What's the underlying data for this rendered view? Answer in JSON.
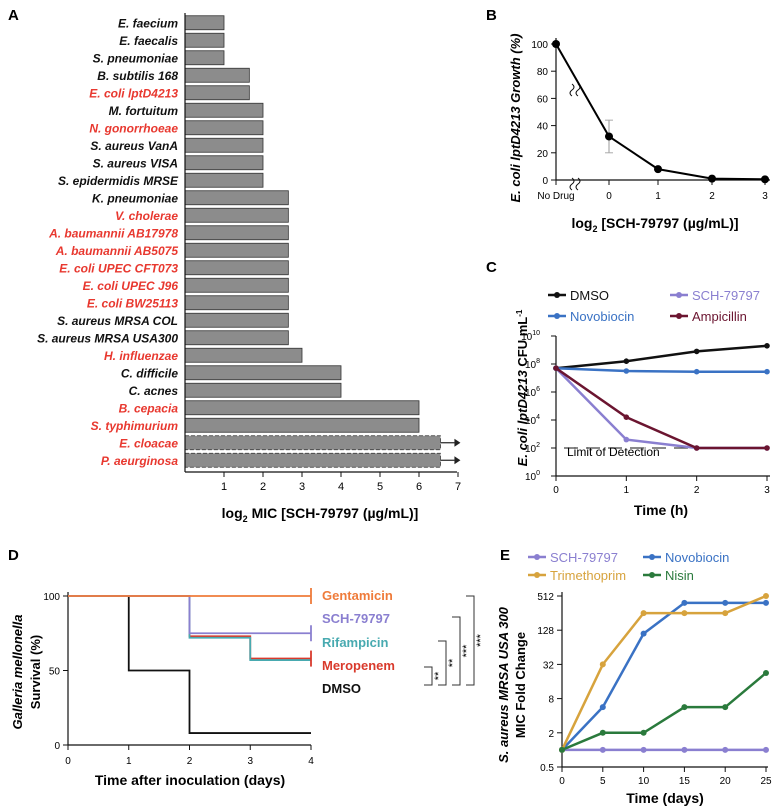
{
  "colors": {
    "red_label": "#e8382f",
    "black": "#111111",
    "bar_fill": "#8c8c8c",
    "sch": "#8a7fd0",
    "novobiocin": "#3a72c4",
    "ampicillin": "#6b1530",
    "dmso": "#111111",
    "gentamicin": "#ef7b3a",
    "rifampicin": "#48aab0",
    "meropenem": "#d93a2c",
    "trimethoprim": "#d7a33d",
    "nisin": "#2a7a3c"
  },
  "panels": {
    "a": {
      "letter": "A"
    },
    "b": {
      "letter": "B"
    },
    "c": {
      "letter": "C"
    },
    "d": {
      "letter": "D"
    },
    "e": {
      "letter": "E"
    }
  },
  "chart_data": [
    {
      "panel": "A",
      "type": "bar",
      "orientation": "horizontal",
      "xlabel_main": "log",
      "xlabel_sub": "2",
      "xlabel_rest": " MIC [SCH-79797  (µg/mL)]",
      "xlim": [
        0,
        7
      ],
      "xticks": [
        "1",
        "2",
        "3",
        "4",
        "5",
        "6",
        "7"
      ],
      "categories": [
        {
          "name": "E. faecium",
          "value": 1,
          "red": false
        },
        {
          "name": "E. faecalis",
          "value": 1,
          "red": false
        },
        {
          "name": "S. pneumoniae",
          "value": 1,
          "red": false
        },
        {
          "name": "B. subtilis 168",
          "value": 1.65,
          "red": false
        },
        {
          "name": "E. coli lptD4213",
          "value": 1.65,
          "red": true
        },
        {
          "name": "M. fortuitum",
          "value": 2,
          "red": false
        },
        {
          "name": "N. gonorrhoeae",
          "value": 2,
          "red": true
        },
        {
          "name": "S. aureus VanA",
          "value": 2,
          "red": false
        },
        {
          "name": "S. aureus VISA",
          "value": 2,
          "red": false
        },
        {
          "name": "S. epidermidis MRSE",
          "value": 2,
          "red": false
        },
        {
          "name": "K. pneumoniae",
          "value": 2.65,
          "red": false
        },
        {
          "name": "V. cholerae",
          "value": 2.65,
          "red": true
        },
        {
          "name": "A. baumannii AB17978",
          "value": 2.65,
          "red": true
        },
        {
          "name": "A. baumannii AB5075",
          "value": 2.65,
          "red": true
        },
        {
          "name": "E. coli UPEC CFT073",
          "value": 2.65,
          "red": true
        },
        {
          "name": "E. coli UPEC J96",
          "value": 2.65,
          "red": true
        },
        {
          "name": "E. coli BW25113",
          "value": 2.65,
          "red": true
        },
        {
          "name": "S. aureus MRSA COL",
          "value": 2.65,
          "red": false
        },
        {
          "name": "S. aureus MRSA USA300",
          "value": 2.65,
          "red": false
        },
        {
          "name": "H. influenzae",
          "value": 3,
          "red": true
        },
        {
          "name": "C. difficile",
          "value": 4,
          "red": false
        },
        {
          "name": "C. acnes",
          "value": 4,
          "red": false
        },
        {
          "name": "B. cepacia",
          "value": 6,
          "red": true
        },
        {
          "name": "S. typhimurium",
          "value": 6,
          "red": true
        },
        {
          "name": "E. cloacae",
          "value": 6.55,
          "red": true,
          "censored": true
        },
        {
          "name": "P. aeurginosa",
          "value": 6.55,
          "red": true,
          "censored": true
        }
      ]
    },
    {
      "panel": "B",
      "type": "line",
      "ylabel": "E. coli lptD4213 Growth (%)",
      "xlabel_main": "log",
      "xlabel_sub": "2",
      "xlabel_rest": " [SCH-79797  (µg/mL)]",
      "ylim": [
        0,
        100
      ],
      "yticks": [
        "0",
        "20",
        "40",
        "60",
        "80",
        "100"
      ],
      "xticks": [
        "No Drug",
        "0",
        "1",
        "2",
        "3"
      ],
      "x": [
        "No Drug",
        "0",
        "1",
        "2",
        "3"
      ],
      "values": [
        100,
        32,
        8,
        1,
        0.5
      ],
      "error_at_0": [
        20,
        44
      ]
    },
    {
      "panel": "C",
      "type": "line",
      "ylabel": "E. coli lptD4213 CFU mL",
      "ylabel_sup": "-1",
      "xlabel": "Time (h)",
      "x": [
        0,
        1,
        2,
        3
      ],
      "xticks": [
        "0",
        "1",
        "2",
        "3"
      ],
      "ylim_log10": [
        0,
        10
      ],
      "yticks": [
        "10",
        "10",
        "10",
        "10",
        "10",
        "10"
      ],
      "ytick_exps": [
        "0",
        "2",
        "4",
        "6",
        "8",
        "10"
      ],
      "limit_label": "Limit of Detection",
      "limit_log10": 2,
      "series": [
        {
          "name": "DMSO",
          "log10": [
            7.7,
            8.2,
            8.9,
            9.3
          ]
        },
        {
          "name": "SCH-79797",
          "log10": [
            7.7,
            2.6,
            2.0,
            2.0
          ]
        },
        {
          "name": "Novobiocin",
          "log10": [
            7.7,
            7.5,
            7.45,
            7.45
          ]
        },
        {
          "name": "Ampicillin",
          "log10": [
            7.7,
            4.2,
            2.0,
            2.0
          ]
        }
      ]
    },
    {
      "panel": "D",
      "type": "line",
      "ylabel_italic": "Galleria mellonella",
      "ylabel": "Survival (%)",
      "xlabel": "Time after inoculation (days)",
      "xlim": [
        0,
        4
      ],
      "xticks": [
        "0",
        "1",
        "2",
        "3",
        "4"
      ],
      "ylim": [
        0,
        100
      ],
      "yticks": [
        "0",
        "50",
        "100"
      ],
      "series": [
        {
          "name": "Gentamicin",
          "steps": [
            [
              0,
              100
            ],
            [
              4,
              100
            ]
          ]
        },
        {
          "name": "SCH-79797",
          "steps": [
            [
              0,
              100
            ],
            [
              2,
              100
            ],
            [
              2,
              75
            ],
            [
              4,
              75
            ]
          ]
        },
        {
          "name": "Rifampicin",
          "steps": [
            [
              0,
              100
            ],
            [
              2,
              100
            ],
            [
              2,
              72
            ],
            [
              3,
              72
            ],
            [
              3,
              57
            ],
            [
              4,
              57
            ]
          ]
        },
        {
          "name": "Meropenem",
          "steps": [
            [
              0,
              100
            ],
            [
              2,
              100
            ],
            [
              2,
              73
            ],
            [
              3,
              73
            ],
            [
              3,
              58
            ],
            [
              4,
              58
            ]
          ]
        },
        {
          "name": "DMSO",
          "steps": [
            [
              0,
              100
            ],
            [
              1,
              100
            ],
            [
              1,
              50
            ],
            [
              2,
              50
            ],
            [
              2,
              8
            ],
            [
              4,
              8
            ]
          ]
        }
      ],
      "significance": [
        "**",
        "**",
        "***",
        "***"
      ]
    },
    {
      "panel": "E",
      "type": "line",
      "ylabel_italic": "S. aureus MRSA USA 300",
      "ylabel": "MIC Fold Change",
      "xlabel": "Time (days)",
      "x": [
        0,
        5,
        10,
        15,
        20,
        25
      ],
      "xticks": [
        "0",
        "5",
        "10",
        "15",
        "20",
        "25"
      ],
      "yticks": [
        "0.5",
        "2",
        "8",
        "32",
        "128",
        "512"
      ],
      "ylim_log2": [
        -1,
        9
      ],
      "series": [
        {
          "name": "SCH-79797",
          "log2": [
            0,
            0,
            0,
            0,
            0,
            0
          ]
        },
        {
          "name": "Novobiocin",
          "log2": [
            0,
            2.5,
            6.8,
            8.6,
            8.6,
            8.6
          ]
        },
        {
          "name": "Trimethoprim",
          "log2": [
            0,
            5,
            8,
            8,
            8,
            9
          ]
        },
        {
          "name": "Nisin",
          "log2": [
            0,
            1,
            1,
            2.5,
            2.5,
            4.5
          ]
        }
      ]
    }
  ]
}
